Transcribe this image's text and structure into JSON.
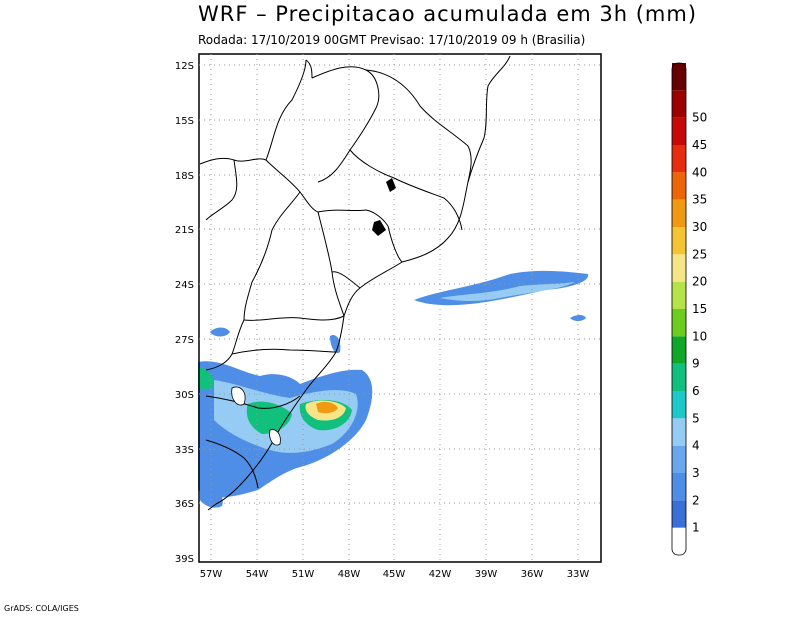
{
  "title": "WRF – Precipitacao acumulada em 3h (mm)",
  "subtitle": "Rodada: 17/10/2019 00GMT Previsao: 17/10/2019 09 h (Brasilia)",
  "footer": "GrADS: COLA/IGES",
  "map": {
    "lat_labels": [
      "12S",
      "15S",
      "18S",
      "21S",
      "24S",
      "27S",
      "30S",
      "33S",
      "36S",
      "39S"
    ],
    "lon_labels": [
      "57W",
      "54W",
      "51W",
      "48W",
      "45W",
      "42W",
      "39W",
      "36W",
      "33W"
    ]
  },
  "colorbar": {
    "levels": [
      "1",
      "2",
      "3",
      "4",
      "5",
      "6",
      "9",
      "10",
      "15",
      "20",
      "25",
      "30",
      "35",
      "40",
      "45",
      "50"
    ],
    "colors": [
      "#ffffff",
      "#3a6fd8",
      "#4f8ee6",
      "#6aa6ee",
      "#96cbf4",
      "#1cc8c8",
      "#12c07e",
      "#0ea72a",
      "#6ccd1e",
      "#b5e44a",
      "#f6e586",
      "#f3c433",
      "#f09a13",
      "#ec6608",
      "#e62d0e",
      "#c60808",
      "#9b0000",
      "#660000"
    ]
  },
  "colors": {
    "light_blue": "#96cbf4",
    "blue": "#4f8ee6",
    "green": "#12c07e",
    "yellow": "#f6e586",
    "orange": "#f09a13"
  }
}
